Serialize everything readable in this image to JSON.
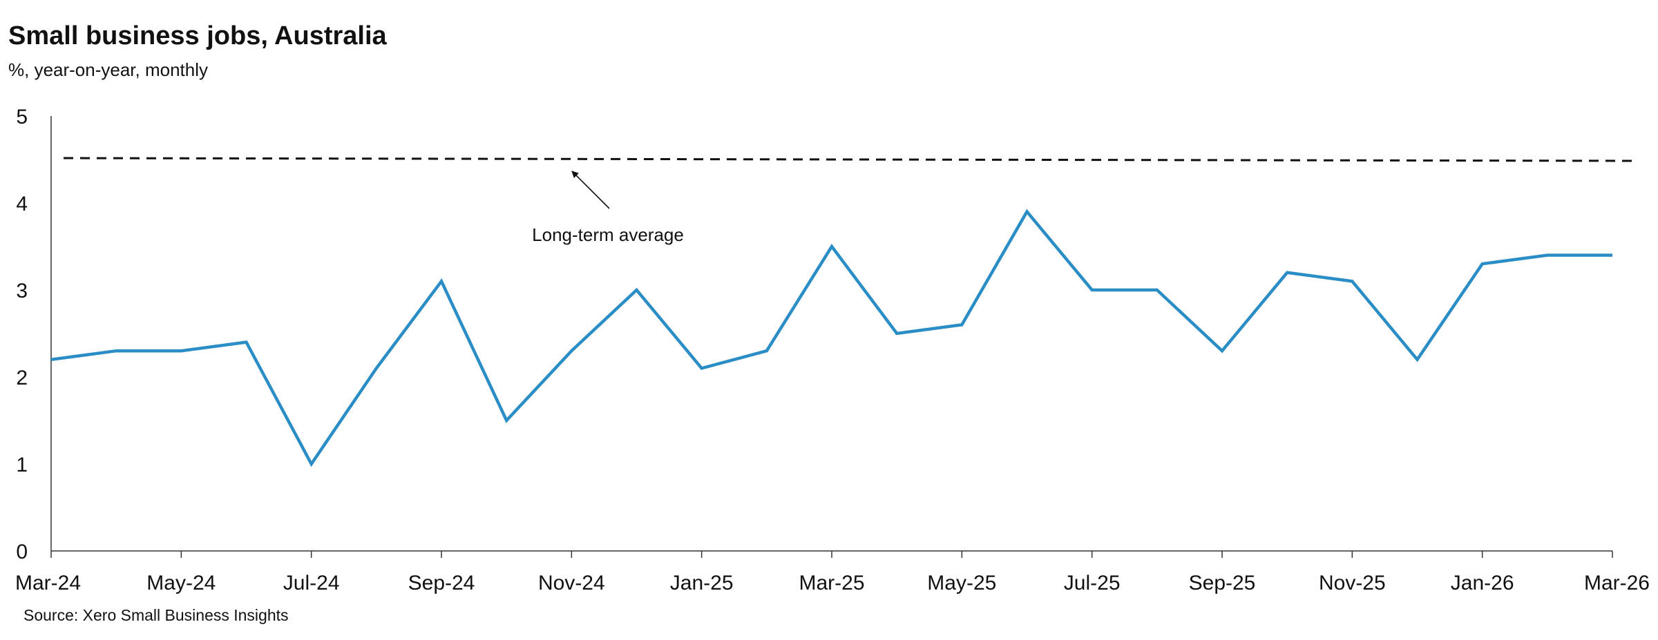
{
  "chart_data": {
    "type": "line",
    "title": "Small business jobs, Australia",
    "subtitle": "%, year-on-year, monthly",
    "source": "Source: Xero Small Business Insights",
    "xlabel": "",
    "ylabel": "",
    "ylim": [
      0,
      5
    ],
    "yticks": [
      0,
      1,
      2,
      3,
      4,
      5
    ],
    "x": [
      "Mar-24",
      "Apr-24",
      "May-24",
      "Jun-24",
      "Jul-24",
      "Aug-24",
      "Sep-24",
      "Oct-24",
      "Nov-24",
      "Dec-24",
      "Jan-25",
      "Feb-25",
      "Mar-25",
      "Apr-25",
      "May-25",
      "Jun-25",
      "Jul-25",
      "Aug-25",
      "Sep-25",
      "Oct-25",
      "Nov-25",
      "Dec-25",
      "Jan-26",
      "Feb-26",
      "Mar-26"
    ],
    "xtick_labels": [
      "Mar-24",
      "May-24",
      "Jul-24",
      "Sep-24",
      "Nov-24",
      "Jan-25",
      "Mar-25",
      "May-25",
      "Jul-25",
      "Sep-25",
      "Nov-25",
      "Jan-26",
      "Mar-26"
    ],
    "series": [
      {
        "values": [
          2.2,
          2.3,
          2.3,
          2.4,
          1.0,
          2.1,
          3.1,
          1.5,
          2.3,
          3.0,
          2.1,
          2.3,
          3.5,
          2.5,
          2.6,
          3.9,
          3.0,
          3.0,
          2.3,
          3.2,
          3.1,
          2.2,
          3.3,
          3.4,
          3.4
        ],
        "color": "#2a8dc5"
      }
    ],
    "reference_line": {
      "value": 4.5,
      "style": "dashed",
      "color": "#111111"
    },
    "annotation": {
      "text": "Long-term average",
      "points_to": "reference_line"
    },
    "grid": false,
    "legend": "none"
  }
}
